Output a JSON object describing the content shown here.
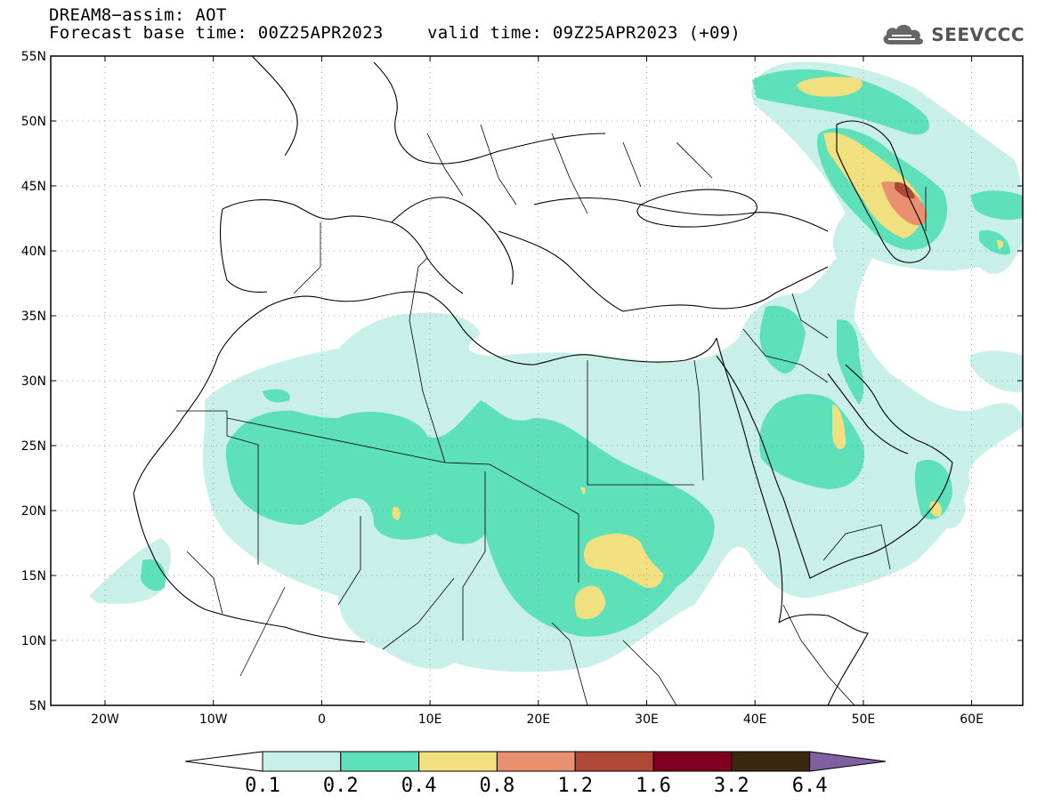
{
  "header": {
    "line1": "DREAM8−assim: AOT",
    "base_time": "Forecast base time: 00Z25APR2023",
    "valid_time": "valid time: 09Z25APR2023 (+09)"
  },
  "logo": {
    "text": "SEEVCCC",
    "icon": "cloud-icon"
  },
  "axes": {
    "lat_labels": [
      "55N",
      "50N",
      "45N",
      "40N",
      "35N",
      "30N",
      "25N",
      "20N",
      "15N",
      "10N",
      "5N"
    ],
    "lon_labels": [
      "20W",
      "10W",
      "0",
      "10E",
      "20E",
      "30E",
      "40E",
      "50E",
      "60E"
    ]
  },
  "colorbar": {
    "levels": [
      "0.1",
      "0.2",
      "0.4",
      "0.8",
      "1.2",
      "1.6",
      "3.2",
      "6.4"
    ],
    "colors": [
      "#c8f0e8",
      "#5ee0b8",
      "#f0e080",
      "#e89070",
      "#b04838",
      "#800020",
      "#3c2810",
      "#8060a0"
    ]
  },
  "map_colors": {
    "low": "#c8f0e8",
    "mid": "#5ee0b8",
    "high": "#f0e080",
    "higher": "#e89070",
    "highest": "#b04838"
  }
}
